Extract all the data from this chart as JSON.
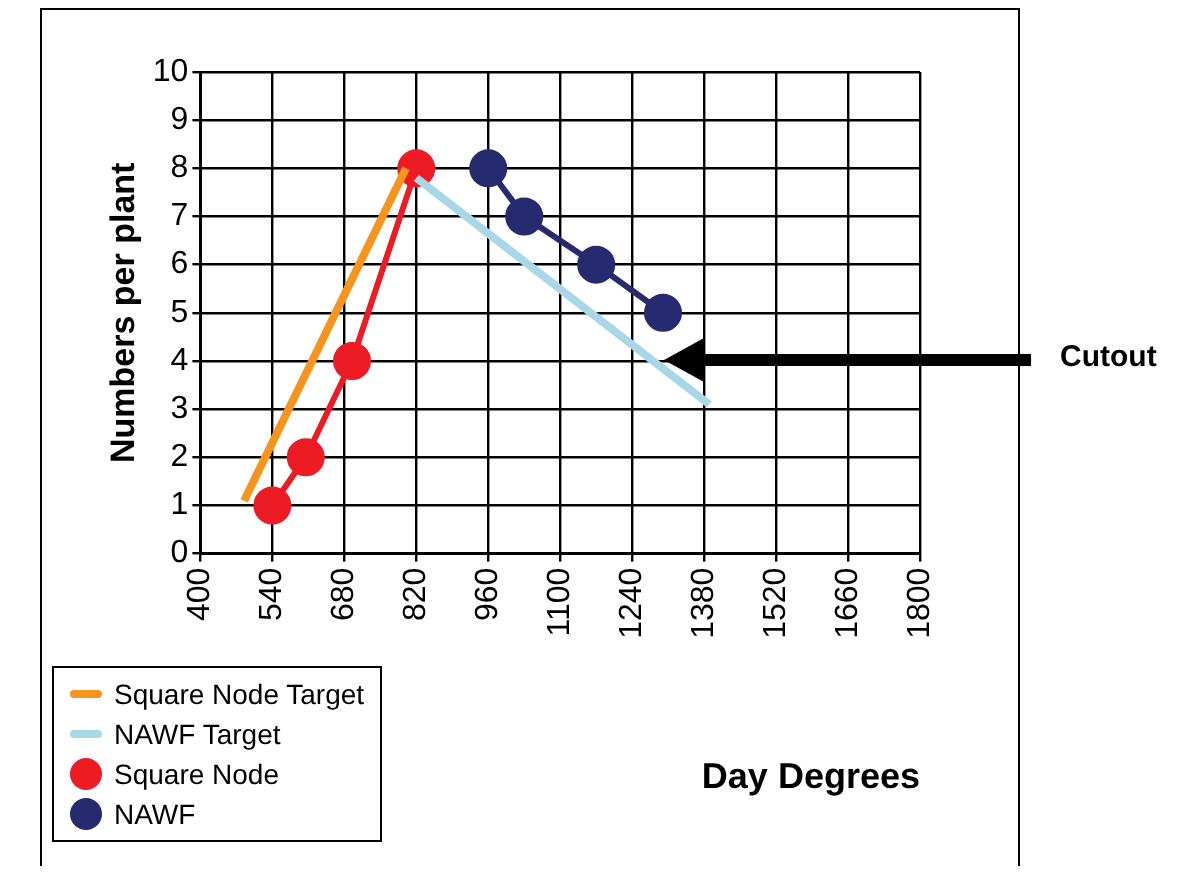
{
  "chart_data": {
    "type": "line",
    "xlabel": "Day Degrees",
    "ylabel": "Numbers per plant",
    "xlim": [
      400,
      1800
    ],
    "xticks": [
      400,
      540,
      680,
      820,
      960,
      1100,
      1240,
      1380,
      1520,
      1660,
      1800
    ],
    "ylim": [
      0,
      10
    ],
    "yticks": [
      0,
      1,
      2,
      3,
      4,
      5,
      6,
      7,
      8,
      9,
      10
    ],
    "grid": true,
    "legend": "bottom left",
    "series": [
      {
        "name": "Square Node Target",
        "type": "line",
        "marker": "none",
        "color": "#f7941d",
        "x": [
          485,
          800
        ],
        "values": [
          1.1,
          8
        ]
      },
      {
        "name": "NAWF Target",
        "type": "line",
        "marker": "none",
        "color": "#a8d8e8",
        "x": [
          820,
          1390
        ],
        "values": [
          7.8,
          3.1
        ]
      },
      {
        "name": "Square Node",
        "type": "line",
        "marker": "circle",
        "color": "#ed1c24",
        "x": [
          540,
          605,
          695,
          820
        ],
        "values": [
          1,
          2,
          4,
          8
        ]
      },
      {
        "name": "NAWF",
        "type": "line",
        "marker": "circle",
        "color": "#262a6e",
        "x": [
          960,
          1030,
          1170,
          1300
        ],
        "values": [
          8,
          7,
          6,
          5
        ]
      }
    ],
    "annotations": [
      "Cutout"
    ]
  }
}
